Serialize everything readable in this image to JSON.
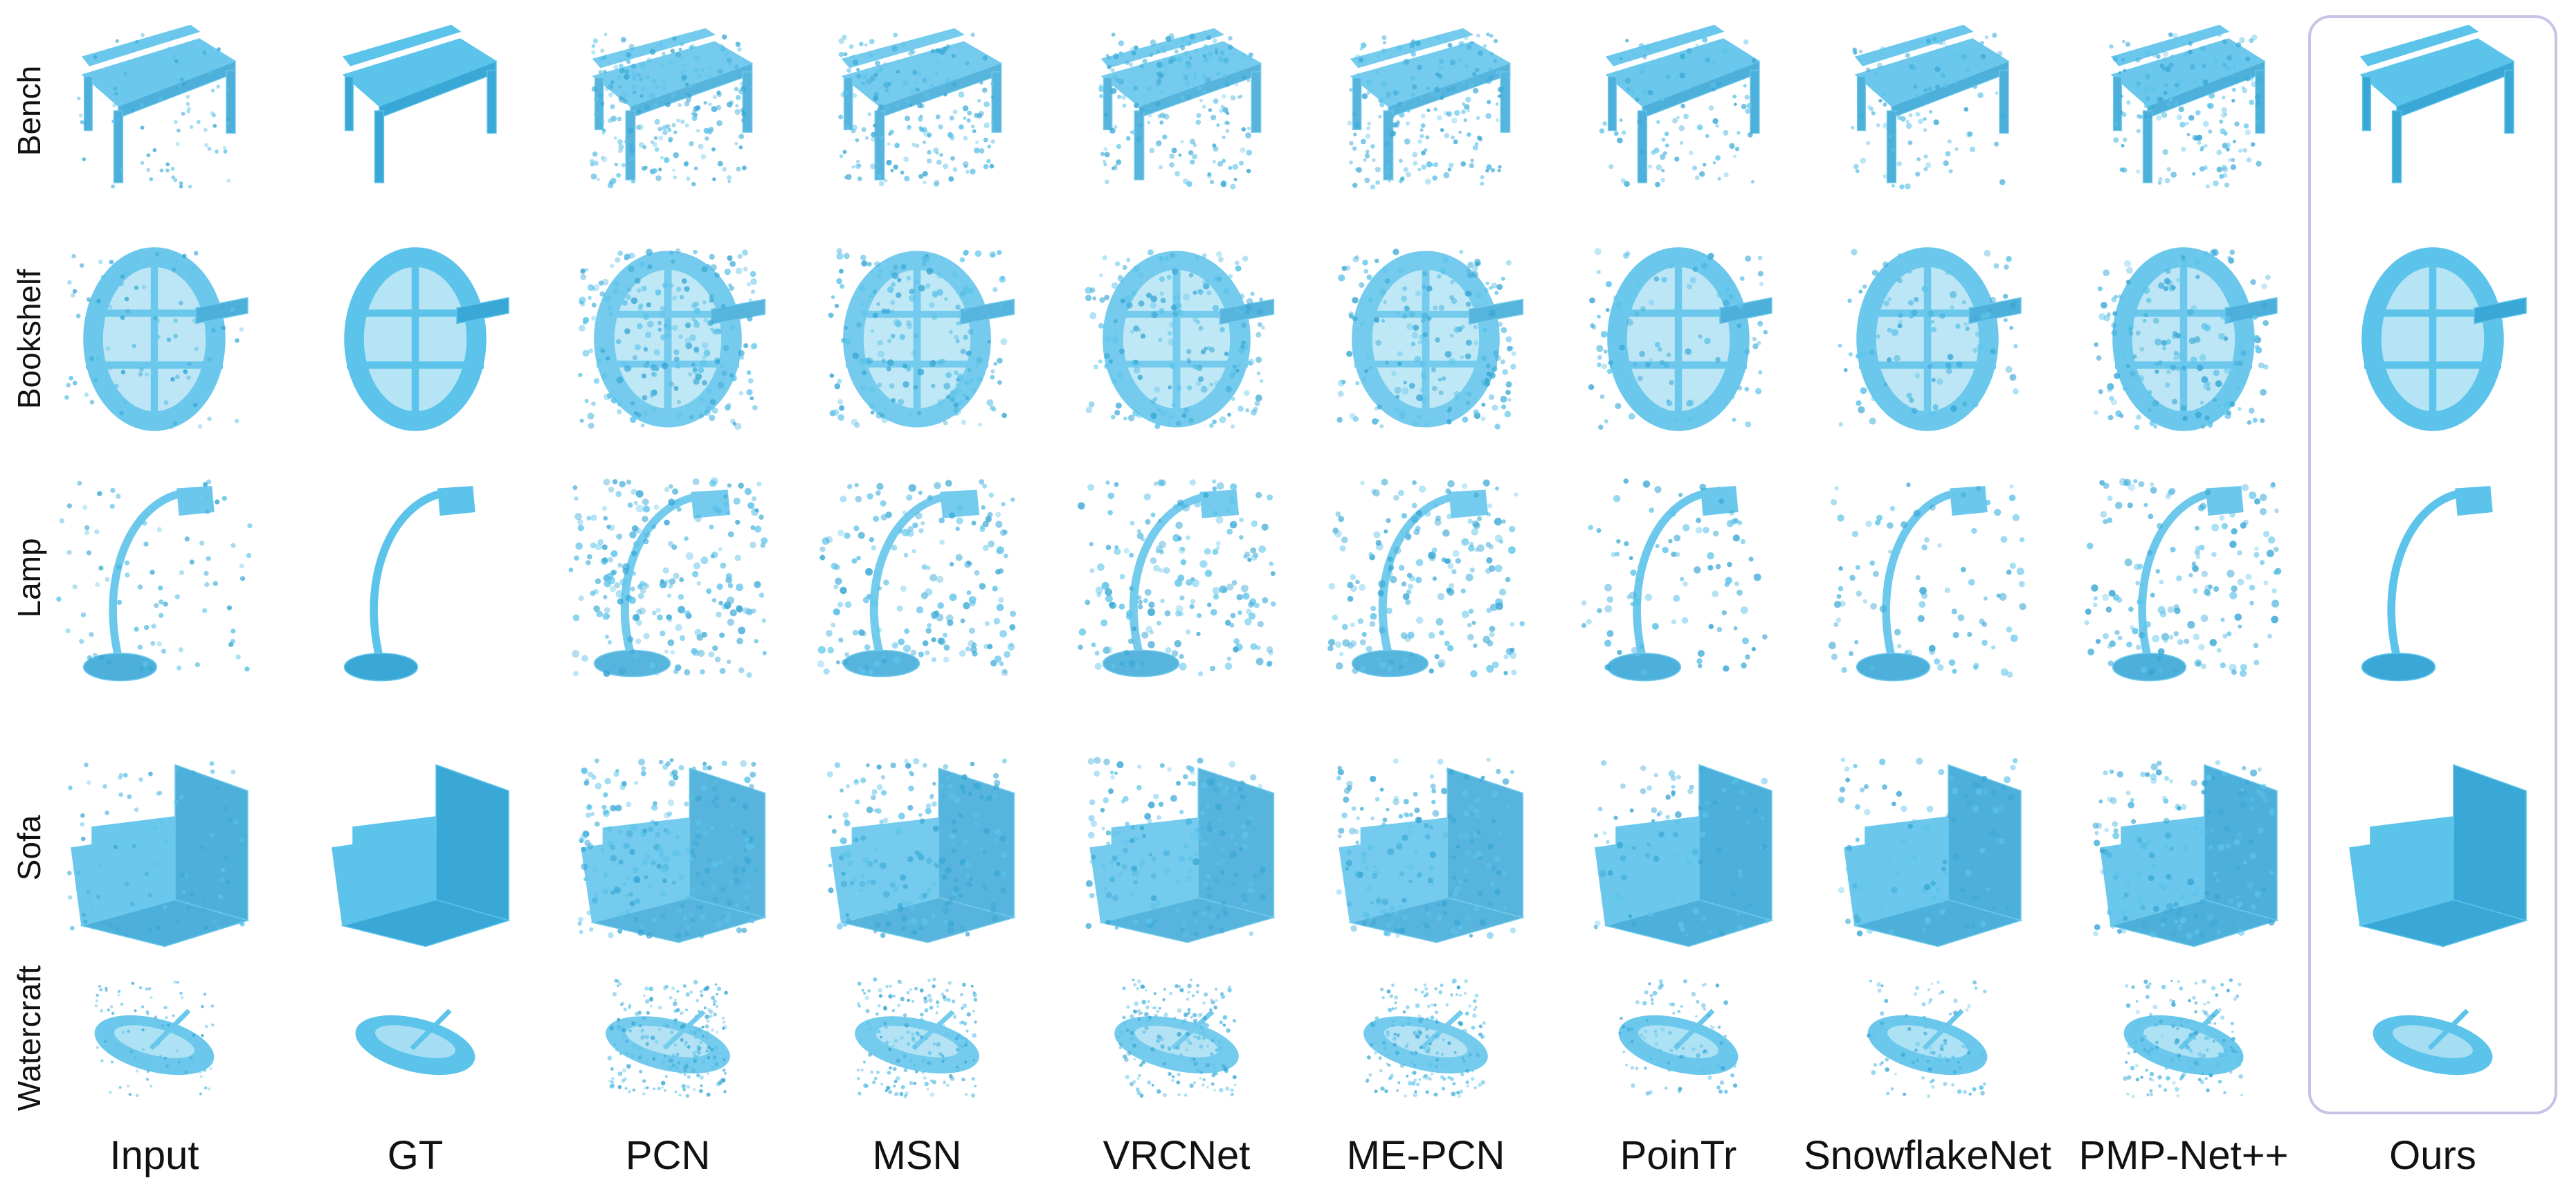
{
  "rows": [
    "Bench",
    "Bookshelf",
    "Lamp",
    "Sofa",
    "Watercraft"
  ],
  "methods": [
    "Input",
    "GT",
    "PCN",
    "MSN",
    "VRCNet",
    "ME-PCN",
    "PoinTr",
    "SnowflakeNet",
    "PMP-Net++",
    "Ours"
  ],
  "highlight_method": "Ours",
  "colors": {
    "point_cloud": "#5cc3ea",
    "shade": "#3aa8d6",
    "highlight": "#54b9e4",
    "box": "#c9c2e6"
  },
  "style": {
    "Input": "partial",
    "GT": "solid",
    "PCN": "blob",
    "MSN": "noisy",
    "VRCNet": "noisy",
    "ME-PCN": "noisy",
    "PoinTr": "fair",
    "SnowflakeNet": "fair",
    "PMP-Net++": "sparse",
    "Ours": "solid"
  }
}
